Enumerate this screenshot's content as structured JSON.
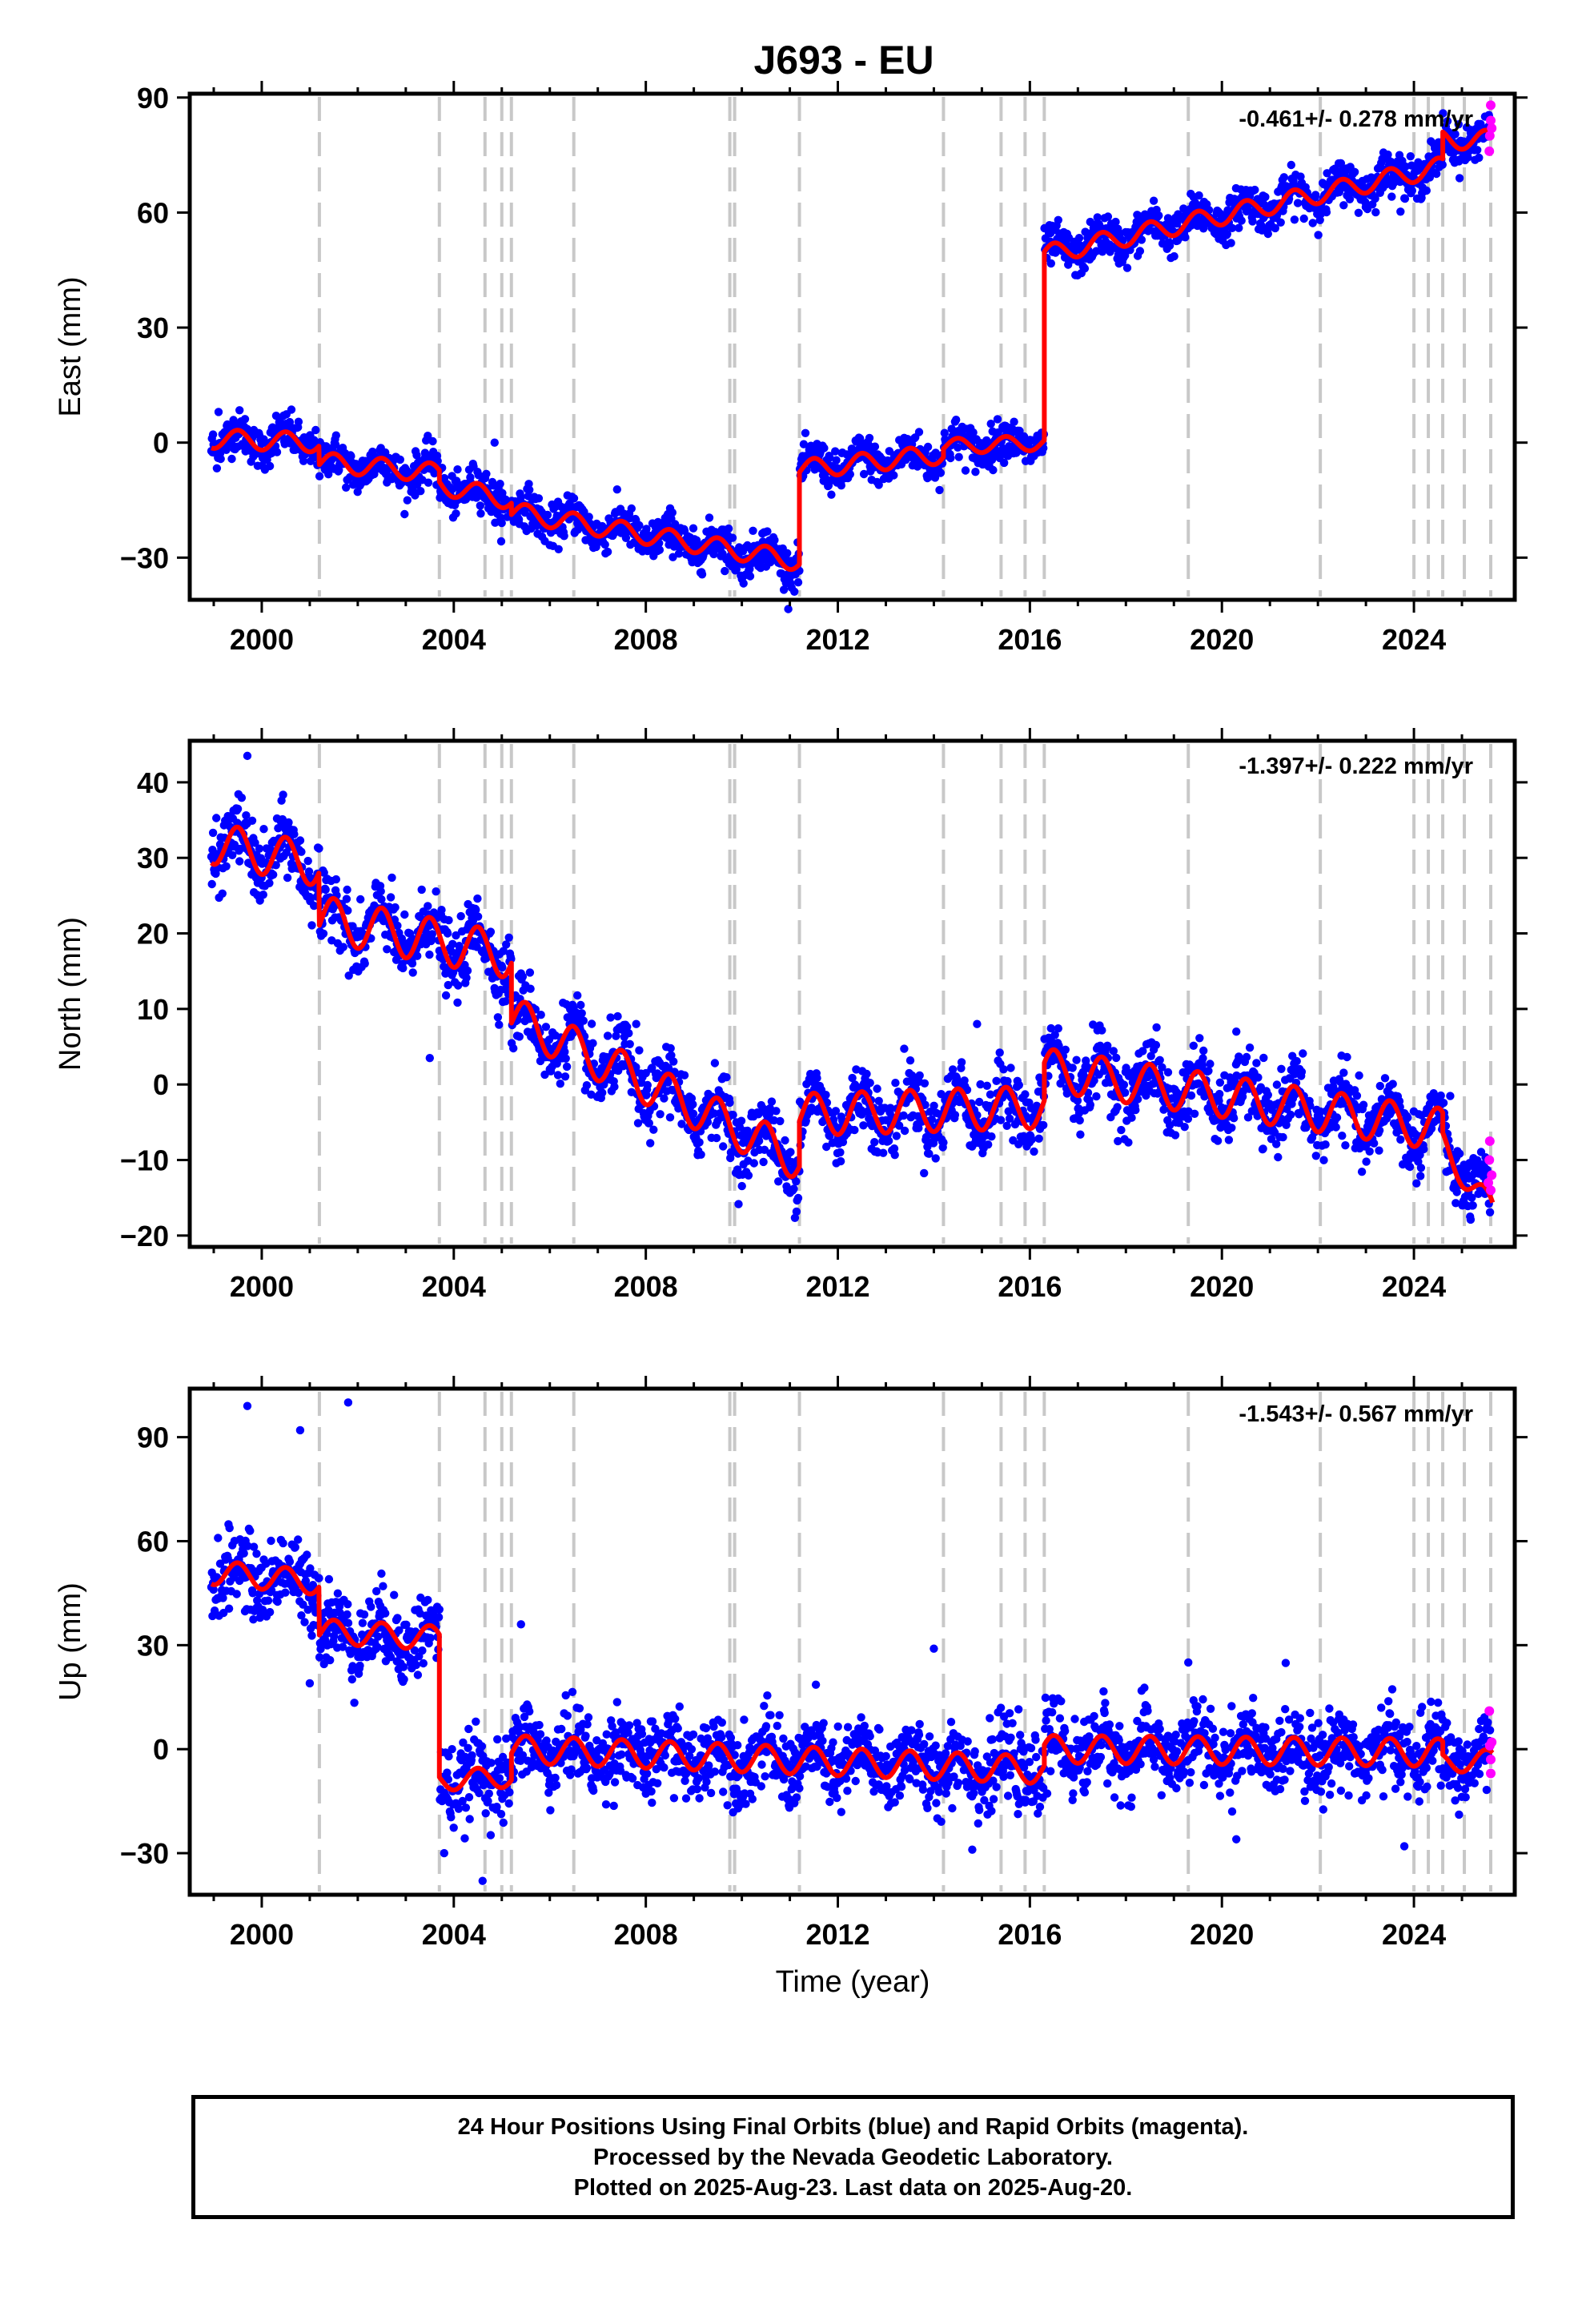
{
  "title": "J693 - EU",
  "colors": {
    "final": "#0000ff",
    "rapid": "#ff00ff",
    "model": "#ff0000",
    "steps": "#c8c8c8"
  },
  "footer": {
    "line1": "24 Hour Positions Using Final Orbits (blue) and Rapid Orbits (magenta).",
    "line2": "Processed by the Nevada Geodetic Laboratory.",
    "line3": "Plotted on 2025-Aug-23. Last data on 2025-Aug-20."
  },
  "chart_data": [
    {
      "type": "scatter",
      "ylabel": "East (mm)",
      "xlabel": "",
      "rate": "-0.461+/- 0.278 mm/yr",
      "xlim": [
        1998.5,
        2026.1
      ],
      "ylim": [
        -41,
        91
      ],
      "xticks": [
        2000,
        2004,
        2008,
        2012,
        2016,
        2020,
        2024
      ],
      "yticks": [
        -30,
        0,
        30,
        60,
        90
      ],
      "step_lines": [
        2001.2,
        2003.7,
        2004.65,
        2005.0,
        2005.2,
        2006.5,
        2009.75,
        2009.85,
        2011.2,
        2014.2,
        2015.4,
        2015.9,
        2016.3,
        2019.3,
        2022.05,
        2024.0,
        2024.3,
        2024.6,
        2025.05,
        2025.6
      ],
      "model": {
        "segments": [
          {
            "start": 1998.95,
            "end": 2001.2,
            "y0": 1,
            "y1": 0,
            "amp": 2.5
          },
          {
            "start": 2001.2,
            "end": 2003.7,
            "y0": -5,
            "y1": -8,
            "amp": 2.5
          },
          {
            "start": 2003.7,
            "end": 2005.2,
            "y0": -11,
            "y1": -15,
            "amp": 2.5
          },
          {
            "start": 2005.2,
            "end": 2011.2,
            "y0": -18,
            "y1": -31,
            "amp": 2.5
          },
          {
            "start": 2011.2,
            "end": 2014.2,
            "y0": -7,
            "y1": -3,
            "amp": 2.5
          },
          {
            "start": 2014.2,
            "end": 2016.3,
            "y0": -1,
            "y1": 0,
            "amp": 2.0
          },
          {
            "start": 2016.3,
            "end": 2024.6,
            "y0": 49,
            "y1": 72,
            "amp": 2.5
          },
          {
            "start": 2024.6,
            "end": 2025.65,
            "y0": 79,
            "y1": 79,
            "amp": 2.5
          }
        ]
      },
      "scatter_sigma": 2.6,
      "outliers": [
        [
          2004.85,
          0
        ],
        [
          1999.1,
          8
        ],
        [
          2000.3,
          7
        ]
      ],
      "rapid": [
        [
          2025.57,
          76
        ],
        [
          2025.58,
          80
        ],
        [
          2025.6,
          84
        ],
        [
          2025.6,
          88
        ],
        [
          2025.62,
          82
        ]
      ]
    },
    {
      "type": "scatter",
      "ylabel": "North (mm)",
      "xlabel": "",
      "rate": "-1.397+/- 0.222 mm/yr",
      "xlim": [
        1998.5,
        2026.1
      ],
      "ylim": [
        -21.5,
        45.5
      ],
      "xticks": [
        2000,
        2004,
        2008,
        2012,
        2016,
        2020,
        2024
      ],
      "yticks": [
        -20,
        -10,
        0,
        10,
        20,
        30,
        40
      ],
      "step_lines": [
        2001.2,
        2003.7,
        2004.65,
        2005.0,
        2005.2,
        2006.5,
        2009.75,
        2009.85,
        2011.2,
        2014.2,
        2015.4,
        2015.9,
        2016.3,
        2019.3,
        2022.05,
        2024.0,
        2024.3,
        2024.6,
        2025.05,
        2025.6
      ],
      "model": {
        "segments": [
          {
            "start": 1998.95,
            "end": 2001.2,
            "y0": 32,
            "y1": 29,
            "amp": 2.8
          },
          {
            "start": 2001.2,
            "end": 2005.2,
            "y0": 22,
            "y1": 17,
            "amp": 3.0
          },
          {
            "start": 2005.2,
            "end": 2011.2,
            "y0": 9,
            "y1": -10,
            "amp": 2.8
          },
          {
            "start": 2011.2,
            "end": 2016.3,
            "y0": -4,
            "y1": -3,
            "amp": 2.8
          },
          {
            "start": 2016.3,
            "end": 2024.6,
            "y0": 2,
            "y1": -6,
            "amp": 2.8
          },
          {
            "start": 2024.6,
            "end": 2025.65,
            "y0": -8,
            "y1": -17,
            "amp": 2.0
          }
        ]
      },
      "scatter_sigma": 2.2,
      "outliers": [
        [
          1999.7,
          43.5
        ],
        [
          2003.5,
          3.5
        ],
        [
          2007.8,
          8
        ],
        [
          2014.9,
          8
        ],
        [
          2020.3,
          7
        ]
      ],
      "rapid": [
        [
          2025.55,
          -13
        ],
        [
          2025.57,
          -10
        ],
        [
          2025.58,
          -7.5
        ],
        [
          2025.6,
          -14
        ],
        [
          2025.62,
          -12
        ]
      ]
    },
    {
      "type": "scatter",
      "ylabel": "Up (mm)",
      "xlabel": "Time (year)",
      "rate": "-1.543+/- 0.567 mm/yr",
      "xlim": [
        1998.5,
        2026.1
      ],
      "ylim": [
        -42,
        104
      ],
      "xticks": [
        2000,
        2004,
        2008,
        2012,
        2016,
        2020,
        2024
      ],
      "yticks": [
        -30,
        0,
        30,
        60,
        90
      ],
      "step_lines": [
        2001.2,
        2003.7,
        2004.65,
        2005.0,
        2005.2,
        2006.5,
        2009.75,
        2009.85,
        2011.2,
        2014.2,
        2015.4,
        2015.9,
        2016.3,
        2019.3,
        2022.05,
        2024.0,
        2024.3,
        2024.6,
        2025.05,
        2025.6
      ],
      "model": {
        "segments": [
          {
            "start": 1998.95,
            "end": 2001.2,
            "y0": 51,
            "y1": 48,
            "amp": 3.5
          },
          {
            "start": 2001.2,
            "end": 2003.7,
            "y0": 34,
            "y1": 32,
            "amp": 3.5
          },
          {
            "start": 2003.7,
            "end": 2005.2,
            "y0": -9,
            "y1": -8,
            "amp": 3.0
          },
          {
            "start": 2005.2,
            "end": 2016.3,
            "y0": 0,
            "y1": -6,
            "amp": 4.0
          },
          {
            "start": 2016.3,
            "end": 2024.6,
            "y0": 0,
            "y1": -1,
            "amp": 4.0
          },
          {
            "start": 2024.6,
            "end": 2025.65,
            "y0": -4,
            "y1": -3,
            "amp": 3.0
          }
        ]
      },
      "scatter_sigma": 5.5,
      "outliers": [
        [
          1999.7,
          99
        ],
        [
          2001.8,
          100
        ],
        [
          2000.8,
          92
        ],
        [
          2004.6,
          -38
        ],
        [
          2003.8,
          -30
        ],
        [
          2005.4,
          36
        ],
        [
          2014.0,
          29
        ],
        [
          2014.8,
          -29
        ],
        [
          2019.3,
          25
        ],
        [
          2020.3,
          -26
        ],
        [
          2023.8,
          -28
        ],
        [
          2001.0,
          19
        ]
      ],
      "rapid": [
        [
          2025.57,
          11
        ],
        [
          2025.58,
          1
        ],
        [
          2025.6,
          -3
        ],
        [
          2025.6,
          -7
        ],
        [
          2025.62,
          2
        ]
      ]
    }
  ]
}
